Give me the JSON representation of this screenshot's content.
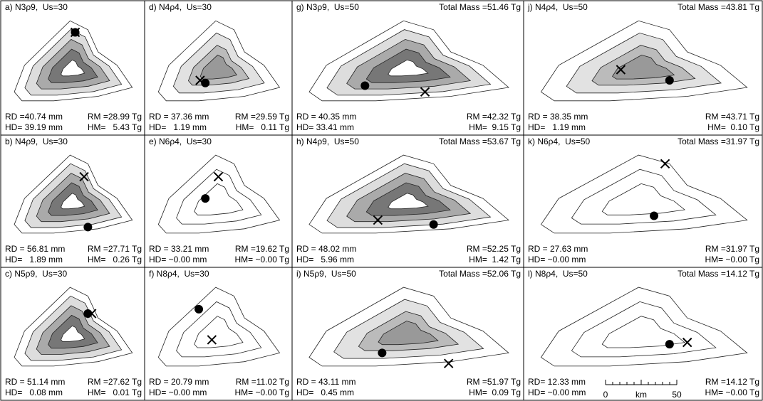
{
  "panels": [
    {
      "label": "a) N3ρ9,  Us=30",
      "rd": "RD =40.74 mm",
      "rm": "RM =28.99 Tg",
      "hd": "HD= 39.19 mm",
      "hm": "HM=   5.43 Tg"
    },
    {
      "label": "d) N4ρ4,  Us=30",
      "rd": "RD = 37.36 mm",
      "rm": "RM =29.59 Tg",
      "hd": "HD=   1.19 mm",
      "hm": "HM=   0.11 Tg"
    },
    {
      "label": "g) N3ρ9,  Us=50",
      "total": "Total Mass =51.46 Tg",
      "rd": "RD = 40.35 mm",
      "rm": "RM =42.32 Tg",
      "hd": "HD= 33.41 mm",
      "hm": "HM=  9.15 Tg"
    },
    {
      "label": "j) N4ρ4,  Us=50",
      "total": "Total Mass =43.81 Tg",
      "rd": "RD = 38.35 mm",
      "rm": "RM =43.71 Tg",
      "hd": "HD=   1.19 mm",
      "hm": "HM=  0.10 Tg"
    },
    {
      "label": "b) N4ρ9,  Us=30",
      "rd": "RD = 56.81 mm",
      "rm": "RM =27.71 Tg",
      "hd": "HD=   1.89 mm",
      "hm": "HM=   0.26 Tg"
    },
    {
      "label": "e) N6ρ4,  Us=30",
      "rd": "RD = 33.21 mm",
      "rm": "RM =19.62 Tg",
      "hd": "HD= ~0.00 mm",
      "hm": "HM= ~0.00 Tg"
    },
    {
      "label": "h) N4ρ9,  Us=50",
      "total": "Total Mass =53.67 Tg",
      "rd": "RD = 48.02 mm",
      "rm": "RM =52.25 Tg",
      "hd": "HD=   5.96 mm",
      "hm": "HM=  1.42 Tg"
    },
    {
      "label": "k) N6ρ4,  Us=50",
      "total": "Total Mass =31.97 Tg",
      "rd": "RD = 27.63 mm",
      "rm": "RM =31.97 Tg",
      "hd": "HD= ~0.00 mm",
      "hm": "HM= ~0.00 Tg"
    },
    {
      "label": "c) N5ρ9,  Us=30",
      "rd": "RD = 51.14 mm",
      "rm": "RM =27.62 Tg",
      "hd": "HD=   0.08 mm",
      "hm": "HM=   0.01 Tg"
    },
    {
      "label": "f) N8ρ4,  Us=30",
      "rd": "RD = 20.79 mm",
      "rm": "RM =11.02 Tg",
      "hd": "HD= ~0.00 mm",
      "hm": "HM= ~0.00 Tg"
    },
    {
      "label": "i) N5ρ9,  Us=50",
      "total": "Total Mass =52.06 Tg",
      "rd": "RD = 43.11 mm",
      "rm": "RM =51.97 Tg",
      "hd": "HD=   0.45 mm",
      "hm": "HM=  0.09 Tg"
    },
    {
      "label": "l) N8ρ4,  Us=50",
      "total": "Total Mass =14.12 Tg",
      "rd": "RD= 12.33 mm",
      "rm": "RM =14.12 Tg",
      "hd": "HD= ~0.00 mm",
      "hm": "HM= ~0.00 Tg"
    }
  ],
  "scale_bar": {
    "start": "0",
    "unit": "km",
    "end": "50"
  }
}
